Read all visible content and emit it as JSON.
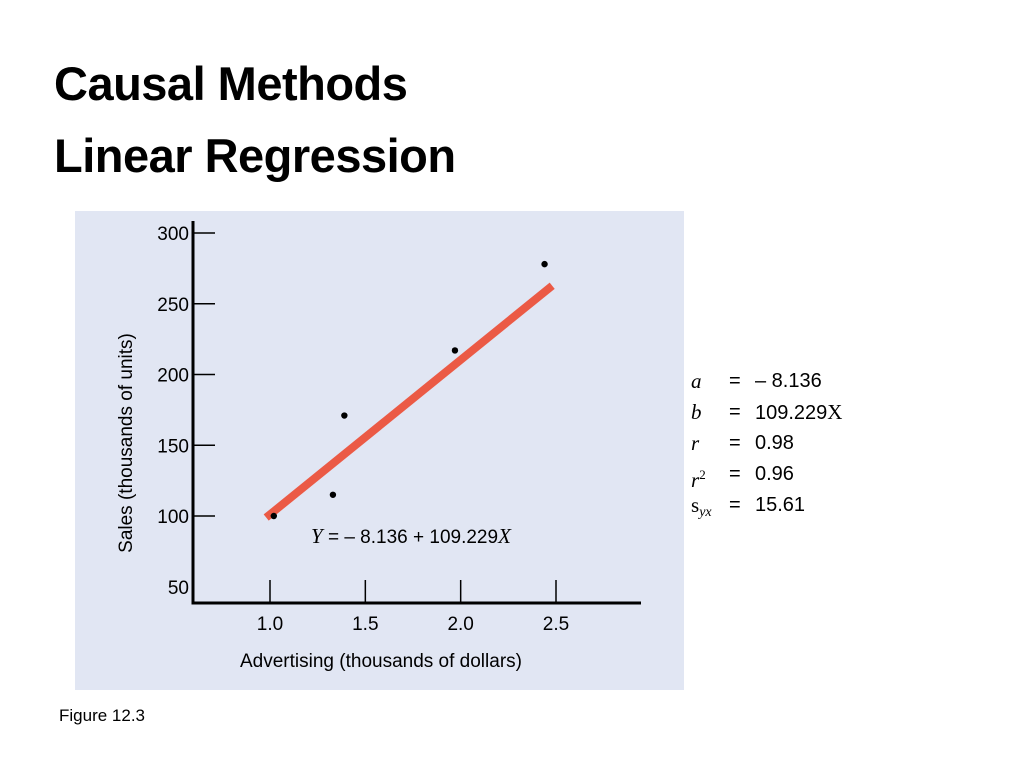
{
  "slide": {
    "title_line1": "Causal Methods",
    "title_line2": "Linear Regression",
    "caption": "Figure 12.3"
  },
  "colors": {
    "panel": "#e1e6f3",
    "regression_line": "#eb5a45",
    "axis": "#000000"
  },
  "chart_data": {
    "type": "scatter",
    "xlabel": "Advertising (thousands of dollars)",
    "ylabel": "Sales (thousands of units)",
    "x_ticks": [
      "1.0",
      "1.5",
      "2.0",
      "2.5"
    ],
    "y_ticks": [
      "50",
      "100",
      "150",
      "200",
      "250",
      "300"
    ],
    "xlim": [
      0.6,
      2.95
    ],
    "ylim": [
      50,
      310
    ],
    "grid": false,
    "points": [
      {
        "x": 1.02,
        "y": 100
      },
      {
        "x": 1.33,
        "y": 115
      },
      {
        "x": 1.39,
        "y": 171
      },
      {
        "x": 1.97,
        "y": 217
      },
      {
        "x": 2.44,
        "y": 278
      }
    ],
    "regression": {
      "intercept": -8.136,
      "slope": 109.229,
      "x_range": [
        0.98,
        2.48
      ],
      "equation": {
        "lhs": "Y",
        "rhs": " = – 8.136 + 109.229",
        "var": "X"
      }
    }
  },
  "stats": [
    {
      "symbol": "a",
      "value": "– 8.136"
    },
    {
      "symbol": "b",
      "value": "109.229",
      "suffix": "X"
    },
    {
      "symbol": "r",
      "value": "0.98"
    },
    {
      "symbol": "r",
      "sup": "2",
      "value": "0.96"
    },
    {
      "symbol": "s",
      "sub": "yx",
      "value": "15.61"
    }
  ]
}
